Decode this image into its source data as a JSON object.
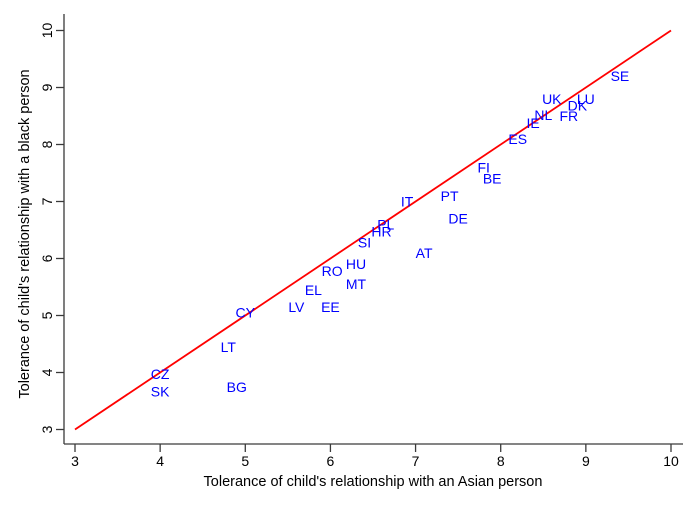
{
  "chart_data": {
    "type": "scatter",
    "title": "",
    "xlabel": "Tolerance of child's relationship with an Asian person",
    "ylabel": "Tolerance of child's relationship with a black person",
    "xlim": [
      3,
      10
    ],
    "ylim": [
      3,
      10
    ],
    "xticks": [
      "3",
      "4",
      "5",
      "6",
      "7",
      "8",
      "9",
      "10"
    ],
    "yticks": [
      "3",
      "4",
      "5",
      "6",
      "7",
      "8",
      "9",
      "10"
    ],
    "grid": false,
    "legend": "none",
    "marker_style": "country-code-text-labels",
    "label_color": "#0000ff",
    "axis_color": "#3a3a3a",
    "reference_line": {
      "name": "identity-line",
      "color": "#ff0000",
      "from": {
        "x": 3.0,
        "y": 3.0
      },
      "to": {
        "x": 10.0,
        "y": 10.0
      }
    },
    "points": [
      {
        "label": "SK",
        "x": 4.0,
        "y": 3.67
      },
      {
        "label": "CZ",
        "x": 4.0,
        "y": 3.97
      },
      {
        "label": "BG",
        "x": 4.9,
        "y": 3.75
      },
      {
        "label": "LT",
        "x": 4.8,
        "y": 4.45
      },
      {
        "label": "CY",
        "x": 5.0,
        "y": 5.05
      },
      {
        "label": "LV",
        "x": 5.6,
        "y": 5.15
      },
      {
        "label": "EE",
        "x": 6.0,
        "y": 5.15
      },
      {
        "label": "EL",
        "x": 5.8,
        "y": 5.45
      },
      {
        "label": "MT",
        "x": 6.3,
        "y": 5.55
      },
      {
        "label": "RO",
        "x": 6.02,
        "y": 5.78
      },
      {
        "label": "HU",
        "x": 6.3,
        "y": 5.9
      },
      {
        "label": "AT",
        "x": 7.1,
        "y": 6.1
      },
      {
        "label": "SI",
        "x": 6.4,
        "y": 6.28
      },
      {
        "label": "HR",
        "x": 6.6,
        "y": 6.47
      },
      {
        "label": "PL",
        "x": 6.65,
        "y": 6.6
      },
      {
        "label": "IT",
        "x": 6.9,
        "y": 7.0
      },
      {
        "label": "DE",
        "x": 7.5,
        "y": 6.7
      },
      {
        "label": "PT",
        "x": 7.4,
        "y": 7.1
      },
      {
        "label": "BE",
        "x": 7.9,
        "y": 7.4
      },
      {
        "label": "FI",
        "x": 7.8,
        "y": 7.6
      },
      {
        "label": "ES",
        "x": 8.2,
        "y": 8.1
      },
      {
        "label": "IE",
        "x": 8.38,
        "y": 8.38
      },
      {
        "label": "NL",
        "x": 8.5,
        "y": 8.52
      },
      {
        "label": "FR",
        "x": 8.8,
        "y": 8.5
      },
      {
        "label": "DK",
        "x": 8.9,
        "y": 8.68
      },
      {
        "label": "UK",
        "x": 8.6,
        "y": 8.8
      },
      {
        "label": "LU",
        "x": 9.0,
        "y": 8.8
      },
      {
        "label": "SE",
        "x": 9.4,
        "y": 9.2
      }
    ]
  }
}
